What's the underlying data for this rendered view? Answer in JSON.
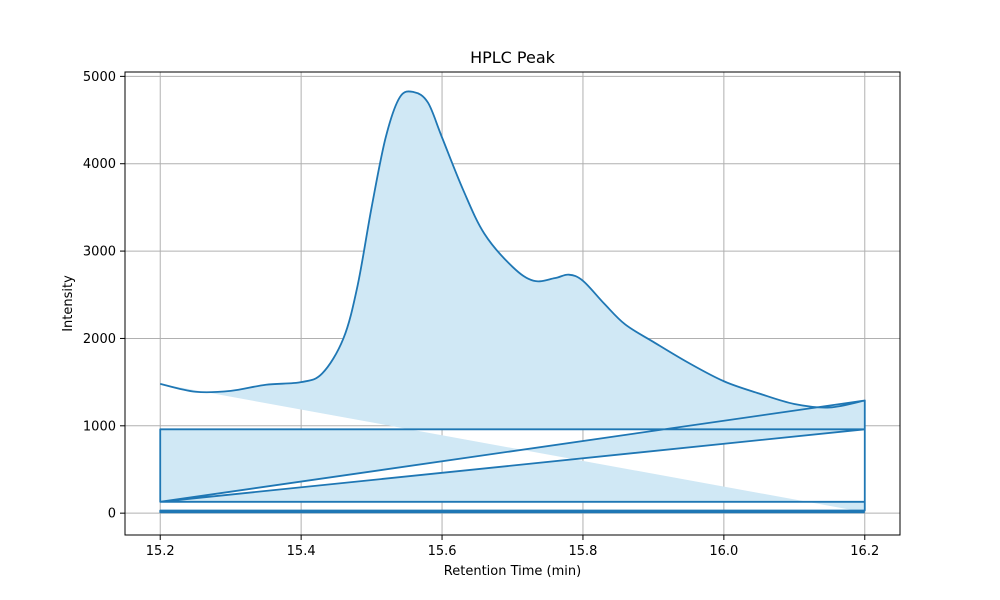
{
  "chart_data": {
    "type": "area",
    "title": "HPLC Peak",
    "xlabel": "Retention Time (min)",
    "ylabel": "Intensity",
    "xlim": [
      15.15,
      16.25
    ],
    "ylim": [
      -250,
      5050
    ],
    "x_ticks": [
      15.2,
      15.4,
      15.6,
      15.8,
      16.0,
      16.2
    ],
    "x_tick_labels": [
      "15.2",
      "15.4",
      "15.6",
      "15.8",
      "16.0",
      "16.2"
    ],
    "y_ticks": [
      0,
      1000,
      2000,
      3000,
      4000,
      5000
    ],
    "y_tick_labels": [
      "0",
      "1000",
      "2000",
      "3000",
      "4000",
      "5000"
    ],
    "grid": true,
    "line_color": "#1f77b4",
    "fill_color": "#d0e8f5",
    "series": [
      {
        "x": [
          15.2,
          15.25,
          15.3,
          15.35,
          15.4,
          15.43,
          15.46,
          15.48,
          15.5,
          15.52,
          15.54,
          15.56,
          15.58,
          15.6,
          15.63,
          15.66,
          15.7,
          15.73,
          15.76,
          15.78,
          15.8,
          15.83,
          15.86,
          15.9,
          15.95,
          16.0,
          16.05,
          16.1,
          16.15,
          16.2,
          16.2,
          15.2,
          15.2,
          16.2,
          16.2,
          15.2,
          15.2,
          16.2,
          16.2,
          15.2,
          15.2,
          16.2
        ],
        "y": [
          1480,
          1390,
          1400,
          1470,
          1500,
          1600,
          2000,
          2600,
          3500,
          4300,
          4760,
          4820,
          4700,
          4300,
          3700,
          3200,
          2820,
          2660,
          2690,
          2730,
          2660,
          2400,
          2160,
          1960,
          1720,
          1510,
          1370,
          1250,
          1210,
          1290,
          960,
          960,
          130,
          130,
          960,
          130,
          130,
          1290,
          30,
          30,
          10,
          10
        ]
      }
    ]
  }
}
